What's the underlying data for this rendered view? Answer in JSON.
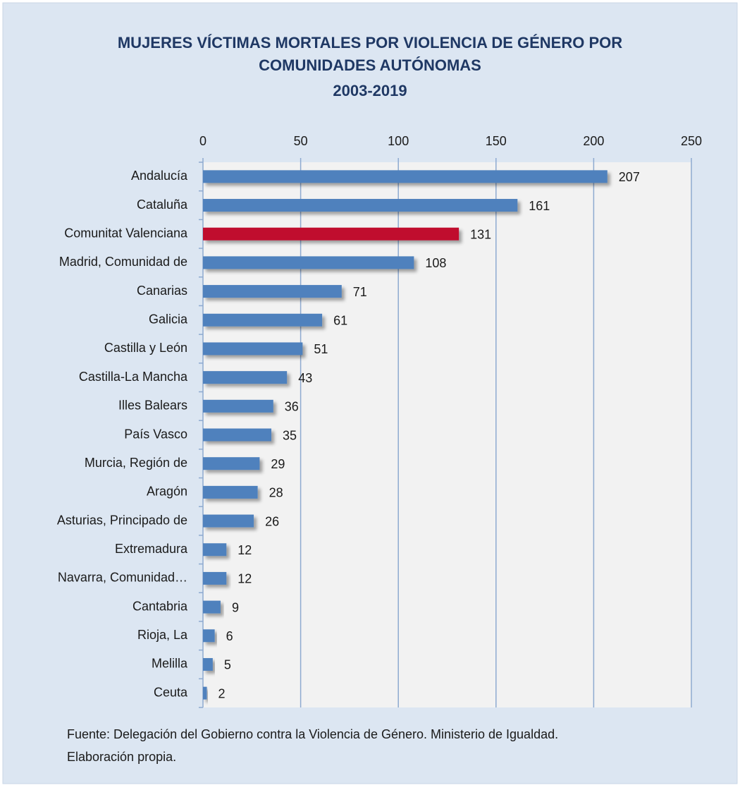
{
  "chart_data": {
    "type": "bar",
    "orientation": "horizontal",
    "title": [
      "MUJERES VÍCTIMAS MORTALES POR VIOLENCIA DE GÉNERO POR",
      "COMUNIDADES AUTÓNOMAS",
      "2003-2019"
    ],
    "categories": [
      "Andalucía",
      "Cataluña",
      "Comunitat Valenciana",
      "Madrid, Comunidad de",
      "Canarias",
      "Galicia",
      "Castilla y León",
      "Castilla-La Mancha",
      "Illes Balears",
      "País Vasco",
      "Murcia, Región de",
      "Aragón",
      "Asturias, Principado de",
      "Extremadura",
      "Navarra, Comunidad…",
      "Cantabria",
      "Rioja, La",
      "Melilla",
      "Ceuta"
    ],
    "values": [
      207,
      161,
      131,
      108,
      71,
      61,
      51,
      43,
      36,
      35,
      29,
      28,
      26,
      12,
      12,
      9,
      6,
      5,
      2
    ],
    "colors": [
      "#4f81bd",
      "#4f81bd",
      "#c0102e",
      "#4f81bd",
      "#4f81bd",
      "#4f81bd",
      "#4f81bd",
      "#4f81bd",
      "#4f81bd",
      "#4f81bd",
      "#4f81bd",
      "#4f81bd",
      "#4f81bd",
      "#4f81bd",
      "#4f81bd",
      "#4f81bd",
      "#4f81bd",
      "#4f81bd",
      "#4f81bd"
    ],
    "xlim": [
      0,
      250
    ],
    "xticks": [
      0,
      50,
      100,
      150,
      200,
      250
    ],
    "grid": true,
    "note": [
      "Fuente: Delegación del Gobierno contra la Violencia de Género. Ministerio de Igualdad.",
      "Elaboración propia."
    ]
  }
}
